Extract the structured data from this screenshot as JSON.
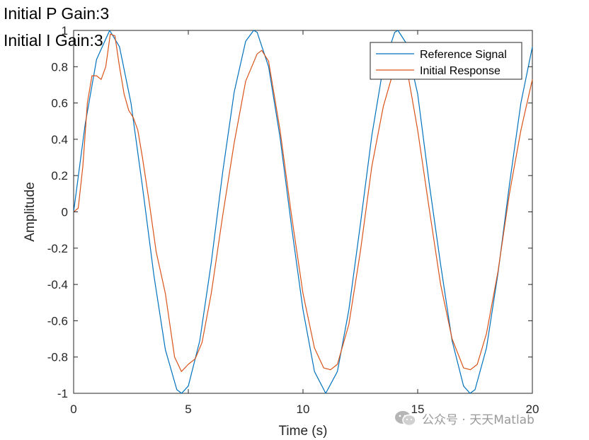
{
  "annotations": {
    "p_gain": "Initial P Gain:3",
    "i_gain": "Initial I Gain:3"
  },
  "watermark": "公众号 · 天天Matlab",
  "colors": {
    "reference": "#0072BD",
    "response": "#D95319",
    "axis": "#262626"
  },
  "chart_data": {
    "type": "line",
    "xlabel": "Time (s)",
    "ylabel": "Amplitude",
    "xlim": [
      0,
      20
    ],
    "ylim": [
      -1,
      1
    ],
    "x_ticks": [
      0,
      5,
      10,
      15,
      20
    ],
    "x_tick_labels": [
      "0",
      "5",
      "10",
      "15",
      "20"
    ],
    "y_ticks": [
      -1,
      -0.8,
      -0.6,
      -0.4,
      -0.2,
      0,
      0.2,
      0.4,
      0.6,
      0.8,
      1
    ],
    "y_tick_labels": [
      "-1",
      "-0.8",
      "-0.6",
      "-0.4",
      "-0.2",
      "0",
      "0.2",
      "0.4",
      "0.6",
      "0.8",
      "1"
    ],
    "grid": false,
    "legend_position": "top-right",
    "series": [
      {
        "name": "Reference Signal",
        "color": "#0072BD",
        "x": [
          0,
          0.5,
          1,
          1.57,
          2,
          2.5,
          3,
          3.5,
          4,
          4.5,
          4.71,
          5,
          5.5,
          6,
          6.5,
          7,
          7.5,
          7.85,
          8,
          8.5,
          9,
          9.5,
          10,
          10.5,
          10.99,
          11.5,
          12,
          12.5,
          13,
          13.5,
          14,
          14.14,
          14.5,
          15,
          15.5,
          16,
          16.5,
          17,
          17.28,
          17.5,
          18,
          18.5,
          19,
          19.5,
          20
        ],
        "y": [
          0,
          0.48,
          0.84,
          1,
          0.91,
          0.6,
          0.14,
          -0.35,
          -0.76,
          -0.98,
          -1,
          -0.96,
          -0.71,
          -0.28,
          0.22,
          0.66,
          0.94,
          1,
          0.99,
          0.8,
          0.41,
          -0.08,
          -0.54,
          -0.88,
          -1,
          -0.88,
          -0.54,
          -0.07,
          0.42,
          0.8,
          0.99,
          1,
          0.93,
          0.65,
          0.16,
          -0.29,
          -0.71,
          -0.96,
          -1,
          -0.98,
          -0.75,
          -0.34,
          0.15,
          0.6,
          0.91
        ]
      },
      {
        "name": "Initial Response",
        "color": "#D95319",
        "x": [
          0,
          0.2,
          0.4,
          0.6,
          0.8,
          1,
          1.2,
          1.4,
          1.6,
          1.8,
          2,
          2.2,
          2.4,
          2.6,
          2.8,
          3,
          3.3,
          3.6,
          4,
          4.4,
          4.7,
          5,
          5.3,
          5.6,
          6,
          6.5,
          7,
          7.5,
          8,
          8.2,
          8.5,
          9,
          9.5,
          10,
          10.5,
          10.9,
          11.2,
          11.5,
          12,
          12.5,
          13,
          13.5,
          14,
          14.3,
          14.6,
          15,
          15.5,
          16,
          16.5,
          17,
          17.3,
          17.6,
          18,
          18.5,
          19,
          19.5,
          20
        ],
        "y": [
          0,
          0.02,
          0.25,
          0.6,
          0.75,
          0.75,
          0.73,
          0.8,
          0.98,
          0.97,
          0.8,
          0.65,
          0.56,
          0.52,
          0.45,
          0.3,
          0.05,
          -0.22,
          -0.45,
          -0.8,
          -0.88,
          -0.84,
          -0.81,
          -0.72,
          -0.45,
          -0.02,
          0.38,
          0.72,
          0.87,
          0.89,
          0.83,
          0.45,
          -0.02,
          -0.45,
          -0.75,
          -0.86,
          -0.87,
          -0.84,
          -0.62,
          -0.22,
          0.25,
          0.58,
          0.8,
          0.85,
          0.74,
          0.45,
          0.02,
          -0.4,
          -0.7,
          -0.86,
          -0.87,
          -0.84,
          -0.67,
          -0.33,
          0.1,
          0.45,
          0.73
        ]
      }
    ]
  }
}
